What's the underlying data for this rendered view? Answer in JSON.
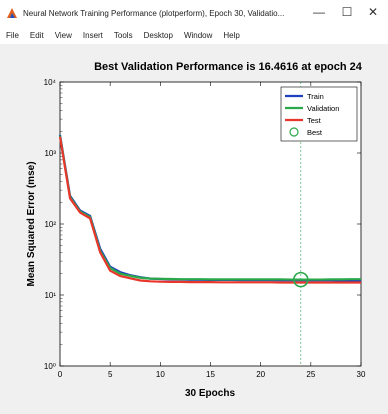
{
  "window": {
    "title": "Neural Network Training Performance (plotperform), Epoch 30, Validatio...",
    "icon": "matlab-figure-icon",
    "controls": {
      "minimize": "—",
      "maximize": "☐",
      "close": "✕"
    }
  },
  "menu": {
    "items": [
      "File",
      "Edit",
      "View",
      "Insert",
      "Tools",
      "Desktop",
      "Window",
      "Help"
    ]
  },
  "chart_data": {
    "type": "line",
    "title": "Best Validation Performance is 16.4616 at epoch 24",
    "xlabel": "30 Epochs",
    "ylabel": "Mean Squared Error  (mse)",
    "x_scale": "linear",
    "y_scale": "log",
    "xlim": [
      0,
      30
    ],
    "ylim": [
      1,
      10000
    ],
    "x_ticks": [
      0,
      5,
      10,
      15,
      20,
      25,
      30
    ],
    "x_tick_labels": [
      "0",
      "5",
      "10",
      "15",
      "20",
      "25",
      "30"
    ],
    "y_ticks": [
      1,
      10,
      100,
      1000,
      10000
    ],
    "y_tick_labels": [
      "10⁰",
      "10¹",
      "10²",
      "10³",
      "10⁴"
    ],
    "grid": false,
    "legend_position": "top-right",
    "x": [
      0,
      1,
      2,
      3,
      4,
      5,
      6,
      7,
      8,
      9,
      10,
      11,
      12,
      13,
      14,
      15,
      16,
      17,
      18,
      19,
      20,
      21,
      22,
      23,
      24,
      25,
      26,
      27,
      28,
      29,
      30
    ],
    "series": [
      {
        "name": "Train",
        "color": "#1f3fbf",
        "values": [
          1800,
          250,
          155,
          130,
          45,
          25,
          21,
          19,
          17.8,
          17,
          16.8,
          16.6,
          16.5,
          16.4,
          16.4,
          16.3,
          16.3,
          16.3,
          16.2,
          16.2,
          16.2,
          16.2,
          16.1,
          16.1,
          16.1,
          16.1,
          16.1,
          16.1,
          16.0,
          16.0,
          16.0
        ]
      },
      {
        "name": "Validation",
        "color": "#2aa84a",
        "values": [
          1750,
          240,
          150,
          125,
          42,
          24,
          20,
          18.6,
          17.5,
          17.0,
          16.9,
          16.8,
          16.7,
          16.7,
          16.7,
          16.6,
          16.6,
          16.6,
          16.6,
          16.6,
          16.6,
          16.6,
          16.6,
          16.5,
          16.46,
          16.5,
          16.5,
          16.6,
          16.6,
          16.7,
          16.7
        ]
      },
      {
        "name": "Test",
        "color": "#e8362b",
        "values": [
          1700,
          230,
          145,
          120,
          40,
          22,
          18.5,
          17.2,
          16.0,
          15.6,
          15.4,
          15.3,
          15.3,
          15.2,
          15.2,
          15.2,
          15.1,
          15.1,
          15.1,
          15.1,
          15.1,
          15.1,
          15.0,
          15.0,
          15.0,
          15.0,
          15.0,
          15.0,
          15.0,
          15.0,
          15.0
        ]
      },
      {
        "name": "Best",
        "color": "#2aa84a",
        "marker": "circle",
        "x": [
          24
        ],
        "values": [
          16.4616
        ]
      }
    ]
  }
}
